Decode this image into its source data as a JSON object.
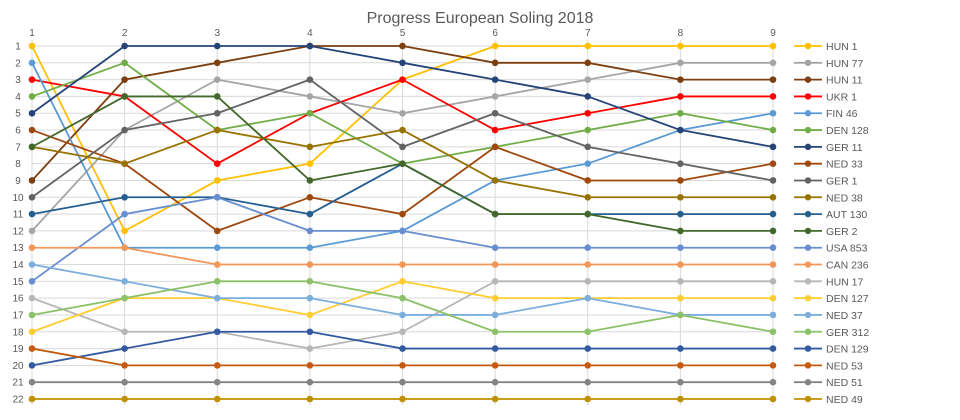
{
  "chart_data": {
    "type": "line",
    "title": "Progress European Soling 2018",
    "xlabel": "",
    "ylabel": "",
    "x": [
      1,
      2,
      3,
      4,
      5,
      6,
      7,
      8,
      9
    ],
    "y_ticks": [
      1,
      2,
      3,
      4,
      5,
      6,
      7,
      8,
      9,
      10,
      11,
      12,
      13,
      14,
      15,
      16,
      17,
      18,
      19,
      20,
      21,
      22
    ],
    "ylim": [
      22,
      1
    ],
    "y_inverted": true,
    "x_axis_position": "top",
    "grid": true,
    "legend_position": "right",
    "series": [
      {
        "name": "HUN 1",
        "color": "#FFC000",
        "values": [
          1,
          12,
          9,
          8,
          3,
          1,
          1,
          1,
          1
        ]
      },
      {
        "name": "HUN 77",
        "color": "#A5A5A5",
        "values": [
          12,
          6,
          3,
          4,
          5,
          4,
          3,
          2,
          2
        ]
      },
      {
        "name": "HUN 11",
        "color": "#7B3F10",
        "values": [
          9,
          3,
          2,
          1,
          1,
          2,
          2,
          3,
          3
        ]
      },
      {
        "name": "UKR 1",
        "color": "#FF0000",
        "values": [
          3,
          4,
          8,
          5,
          3,
          6,
          5,
          4,
          4
        ]
      },
      {
        "name": "FIN 46",
        "color": "#5B9BD5",
        "values": [
          2,
          13,
          13,
          13,
          12,
          9,
          8,
          6,
          5
        ]
      },
      {
        "name": "DEN 128",
        "color": "#70AD47",
        "values": [
          4,
          2,
          6,
          5,
          8,
          7,
          6,
          5,
          6
        ]
      },
      {
        "name": "GER 11",
        "color": "#264478",
        "values": [
          5,
          1,
          1,
          1,
          2,
          3,
          4,
          6,
          7
        ]
      },
      {
        "name": "NED 33",
        "color": "#9E480E",
        "values": [
          6,
          8,
          12,
          10,
          11,
          7,
          9,
          9,
          8
        ]
      },
      {
        "name": "GER 1",
        "color": "#636363",
        "values": [
          10,
          6,
          5,
          3,
          7,
          5,
          7,
          8,
          9
        ]
      },
      {
        "name": "NED 38",
        "color": "#997300",
        "values": [
          7,
          8,
          6,
          7,
          6,
          9,
          10,
          10,
          10
        ]
      },
      {
        "name": "AUT 130",
        "color": "#255E91",
        "values": [
          11,
          10,
          10,
          11,
          8,
          11,
          11,
          11,
          11
        ]
      },
      {
        "name": "GER 2",
        "color": "#43682B",
        "values": [
          7,
          4,
          4,
          9,
          8,
          11,
          11,
          12,
          12
        ]
      },
      {
        "name": "USA 853",
        "color": "#698ED0",
        "values": [
          15,
          11,
          10,
          12,
          12,
          13,
          13,
          13,
          13
        ]
      },
      {
        "name": "CAN 236",
        "color": "#F1975A",
        "values": [
          13,
          13,
          14,
          14,
          14,
          14,
          14,
          14,
          14
        ]
      },
      {
        "name": "HUN 17",
        "color": "#B7B7B7",
        "values": [
          16,
          18,
          18,
          19,
          18,
          15,
          15,
          15,
          15
        ]
      },
      {
        "name": "DEN 127",
        "color": "#FFCD33",
        "values": [
          18,
          16,
          16,
          17,
          15,
          16,
          16,
          16,
          16
        ]
      },
      {
        "name": "NED 37",
        "color": "#7CAFDD",
        "values": [
          14,
          15,
          16,
          16,
          17,
          17,
          16,
          17,
          17
        ]
      },
      {
        "name": "GER 312",
        "color": "#8CC168",
        "values": [
          17,
          16,
          15,
          15,
          16,
          18,
          18,
          17,
          18
        ]
      },
      {
        "name": "DEN 129",
        "color": "#335AA1",
        "values": [
          20,
          19,
          18,
          18,
          19,
          19,
          19,
          19,
          19
        ]
      },
      {
        "name": "NED 53",
        "color": "#C55A11",
        "values": [
          19,
          20,
          20,
          20,
          20,
          20,
          20,
          20,
          20
        ]
      },
      {
        "name": "NED 51",
        "color": "#848484",
        "values": [
          21,
          21,
          21,
          21,
          21,
          21,
          21,
          21,
          21
        ]
      },
      {
        "name": "NED 49",
        "color": "#BF9000",
        "values": [
          22,
          22,
          22,
          22,
          22,
          22,
          22,
          22,
          22
        ]
      }
    ]
  }
}
